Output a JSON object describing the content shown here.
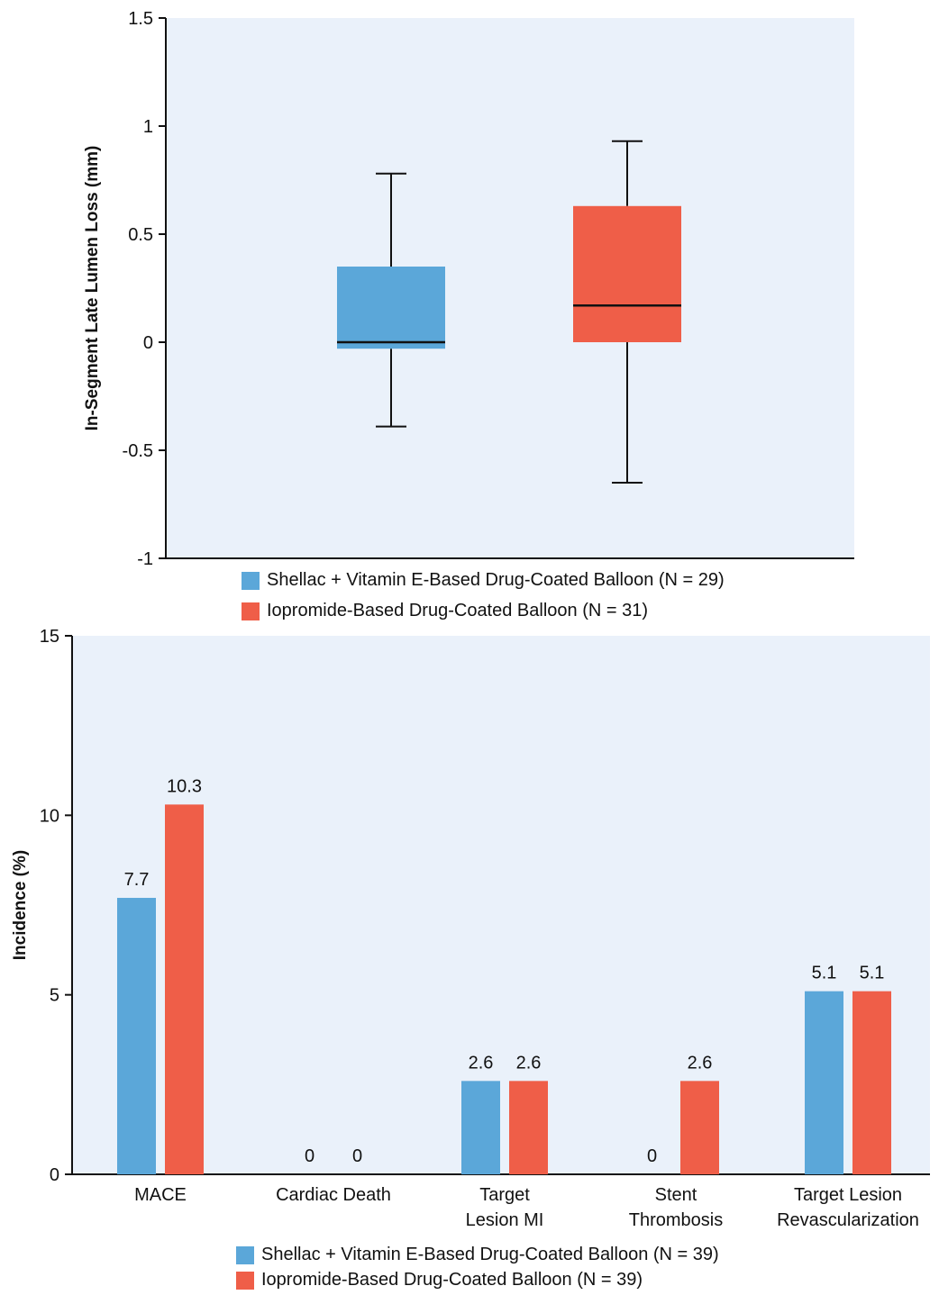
{
  "chart_data": [
    {
      "type": "box",
      "ylabel": "In-Segment Late Lumen Loss (mm)",
      "ylim": [
        -1,
        1.5
      ],
      "yticks": [
        "1.5",
        "1",
        "0.5",
        "0",
        "-0.5",
        "-1"
      ],
      "ytick_values": [
        1.5,
        1,
        0.5,
        0,
        -0.5,
        -1
      ],
      "grid": false,
      "legend_position": "bottom",
      "series": [
        {
          "name": "Shellac + Vitamin E-Based Drug-Coated Balloon (N = 29)",
          "color": "#5ba7d9",
          "min": -0.39,
          "q1": -0.03,
          "median": 0.0,
          "q3": 0.35,
          "max": 0.78
        },
        {
          "name": "Iopromide-Based Drug-Coated Balloon (N = 31)",
          "color": "#ef5e48",
          "min": -0.65,
          "q1": 0.0,
          "median": 0.17,
          "q3": 0.63,
          "max": 0.93
        }
      ]
    },
    {
      "type": "bar",
      "ylabel": "Incidence (%)",
      "ylim": [
        0,
        15
      ],
      "yticks": [
        "15",
        "10",
        "5",
        "0"
      ],
      "ytick_values": [
        15,
        10,
        5,
        0
      ],
      "grid": false,
      "legend_position": "bottom",
      "categories": [
        [
          "MACE"
        ],
        [
          "Cardiac Death"
        ],
        [
          "Target",
          "Lesion MI"
        ],
        [
          "Stent",
          "Thrombosis"
        ],
        [
          "Target Lesion",
          "Revascularization"
        ]
      ],
      "series": [
        {
          "name": "Shellac + Vitamin E-Based Drug-Coated Balloon (N = 39)",
          "color": "#5ba7d9",
          "values": [
            7.7,
            0,
            2.6,
            0,
            5.1
          ],
          "labels": [
            "7.7",
            "0",
            "2.6",
            "0",
            "5.1"
          ]
        },
        {
          "name": "Iopromide-Based Drug-Coated Balloon (N = 39)",
          "color": "#ef5e48",
          "values": [
            10.3,
            0,
            2.6,
            2.6,
            5.1
          ],
          "labels": [
            "10.3",
            "0",
            "2.6",
            "2.6",
            "5.1"
          ]
        }
      ]
    }
  ],
  "legends": {
    "top": [
      {
        "label": "Shellac + Vitamin E-Based Drug-Coated Balloon (N = 29)",
        "color": "#5ba7d9"
      },
      {
        "label": "Iopromide-Based Drug-Coated Balloon (N = 31)",
        "color": "#ef5e48"
      }
    ],
    "bottom": [
      {
        "label": "Shellac + Vitamin E-Based Drug-Coated Balloon (N = 39)",
        "color": "#5ba7d9"
      },
      {
        "label": "Iopromide-Based Drug-Coated Balloon (N = 39)",
        "color": "#ef5e48"
      }
    ]
  },
  "colors": {
    "plot_background": "#eaf1fa",
    "axis": "#111111"
  }
}
